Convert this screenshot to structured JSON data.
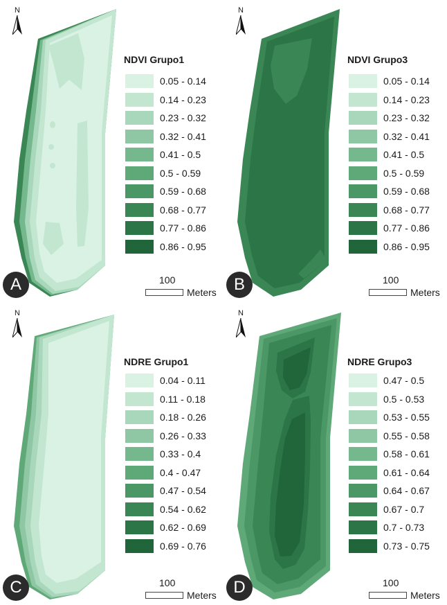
{
  "north_letter": "N",
  "scale": {
    "value": "100",
    "unit": "Meters"
  },
  "palette": [
    "#d9f2e4",
    "#c3e6d1",
    "#a9d7bb",
    "#8fc7a4",
    "#76b88e",
    "#5fa878",
    "#4b9766",
    "#3a8655",
    "#2c7546",
    "#21653a"
  ],
  "panels": [
    {
      "letter": "A",
      "title": "NDVI Grupo1",
      "items": [
        "0.05 - 0.14",
        "0.14 - 0.23",
        "0.23 - 0.32",
        "0.32 - 0.41",
        "0.41 - 0.5",
        "0.5 - 0.59",
        "0.59 - 0.68",
        "0.68 - 0.77",
        "0.77 - 0.86",
        "0.86 - 0.95"
      ]
    },
    {
      "letter": "B",
      "title": "NDVI Grupo3",
      "items": [
        "0.05 - 0.14",
        "0.14 - 0.23",
        "0.23 - 0.32",
        "0.32 - 0.41",
        "0.41 - 0.5",
        "0.5 - 0.59",
        "0.59 - 0.68",
        "0.68 - 0.77",
        "0.77 - 0.86",
        "0.86 - 0.95"
      ]
    },
    {
      "letter": "C",
      "title": "NDRE Grupo1",
      "items": [
        "0.04 - 0.11",
        "0.11 - 0.18",
        "0.18 - 0.26",
        "0.26 - 0.33",
        "0.33 - 0.4",
        "0.4 - 0.47",
        "0.47 - 0.54",
        "0.54 - 0.62",
        "0.62 - 0.69",
        "0.69 - 0.76"
      ]
    },
    {
      "letter": "D",
      "title": "NDRE Grupo3",
      "items": [
        "0.47 - 0.5",
        "0.5 - 0.53",
        "0.53 - 0.55",
        "0.55 - 0.58",
        "0.58 - 0.61",
        "0.61 - 0.64",
        "0.64 - 0.67",
        "0.67 - 0.7",
        "0.7 - 0.73",
        "0.73 - 0.75"
      ]
    }
  ]
}
